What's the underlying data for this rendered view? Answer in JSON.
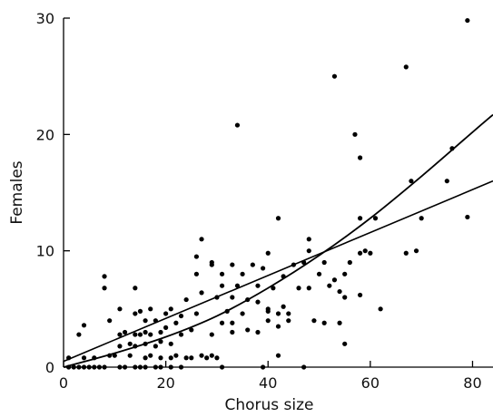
{
  "chart_data": {
    "type": "scatter",
    "title": "",
    "xlabel": "Chorus size",
    "ylabel": "Females",
    "xlim": [
      0,
      84
    ],
    "ylim": [
      0,
      30
    ],
    "xticks": [
      0,
      20,
      40,
      60,
      80
    ],
    "yticks": [
      0,
      10,
      20,
      30
    ],
    "xtick_labels": [
      "0",
      "20",
      "40",
      "60",
      "80"
    ],
    "ytick_labels": [
      "0",
      "10",
      "20",
      "30"
    ],
    "grid": false,
    "legend": "none",
    "points": [
      [
        1,
        0
      ],
      [
        2,
        0
      ],
      [
        3,
        0
      ],
      [
        4,
        0
      ],
      [
        5,
        0
      ],
      [
        6,
        0
      ],
      [
        7,
        0
      ],
      [
        8,
        0
      ],
      [
        11,
        0
      ],
      [
        12,
        0
      ],
      [
        14,
        0
      ],
      [
        15,
        0
      ],
      [
        16,
        0
      ],
      [
        18,
        0
      ],
      [
        19,
        0
      ],
      [
        21,
        0
      ],
      [
        23,
        0
      ],
      [
        31,
        0
      ],
      [
        39,
        0
      ],
      [
        47,
        0
      ],
      [
        1,
        0.8
      ],
      [
        4,
        0.8
      ],
      [
        6,
        0.8
      ],
      [
        9,
        1
      ],
      [
        10,
        1
      ],
      [
        13,
        1
      ],
      [
        16,
        0.8
      ],
      [
        17,
        1
      ],
      [
        19,
        0.8
      ],
      [
        21,
        0.8
      ],
      [
        22,
        1
      ],
      [
        24,
        0.8
      ],
      [
        25,
        0.8
      ],
      [
        27,
        1
      ],
      [
        28,
        0.8
      ],
      [
        29,
        1
      ],
      [
        30,
        0.8
      ],
      [
        11,
        1.8
      ],
      [
        13,
        2
      ],
      [
        14,
        1.8
      ],
      [
        16,
        2
      ],
      [
        18,
        1.8
      ],
      [
        19,
        2.2
      ],
      [
        21,
        2
      ],
      [
        23,
        2.8
      ],
      [
        29,
        2.8
      ],
      [
        33,
        3
      ],
      [
        40,
        4
      ],
      [
        42,
        3.5
      ],
      [
        44,
        4
      ],
      [
        3,
        2.8
      ],
      [
        4,
        3.6
      ],
      [
        11,
        2.8
      ],
      [
        12,
        3
      ],
      [
        14,
        2.8
      ],
      [
        15,
        2.8
      ],
      [
        16,
        3
      ],
      [
        17,
        2.8
      ],
      [
        19,
        3
      ],
      [
        20,
        3.4
      ],
      [
        25,
        3.2
      ],
      [
        31,
        3.8
      ],
      [
        33,
        3.8
      ],
      [
        36,
        3.2
      ],
      [
        38,
        3
      ],
      [
        9,
        4
      ],
      [
        14,
        4.6
      ],
      [
        16,
        4
      ],
      [
        18,
        4
      ],
      [
        20,
        4.6
      ],
      [
        22,
        3.8
      ],
      [
        23,
        4.4
      ],
      [
        26,
        4.6
      ],
      [
        32,
        4.8
      ],
      [
        35,
        4.6
      ],
      [
        40,
        4.8
      ],
      [
        42,
        4.6
      ],
      [
        44,
        4.6
      ],
      [
        49,
        4
      ],
      [
        51,
        3.8
      ],
      [
        54,
        3.8
      ],
      [
        11,
        5
      ],
      [
        15,
        4.8
      ],
      [
        17,
        5
      ],
      [
        21,
        5
      ],
      [
        24,
        5.8
      ],
      [
        27,
        6.4
      ],
      [
        30,
        6
      ],
      [
        33,
        6
      ],
      [
        36,
        5.8
      ],
      [
        38,
        5.6
      ],
      [
        40,
        5
      ],
      [
        43,
        5.2
      ],
      [
        48,
        6.8
      ],
      [
        52,
        7
      ],
      [
        55,
        6
      ],
      [
        58,
        6.2
      ],
      [
        8,
        6.8
      ],
      [
        8,
        7.8
      ],
      [
        14,
        6.8
      ],
      [
        26,
        8
      ],
      [
        29,
        8.8
      ],
      [
        31,
        7
      ],
      [
        34,
        7
      ],
      [
        38,
        7
      ],
      [
        41,
        6.8
      ],
      [
        46,
        6.8
      ],
      [
        50,
        8
      ],
      [
        54,
        6.5
      ],
      [
        26,
        9.5
      ],
      [
        27,
        11
      ],
      [
        29,
        9
      ],
      [
        31,
        8
      ],
      [
        33,
        8.8
      ],
      [
        35,
        8
      ],
      [
        37,
        8.8
      ],
      [
        39,
        8.5
      ],
      [
        40,
        9.8
      ],
      [
        43,
        7.8
      ],
      [
        45,
        8.8
      ],
      [
        47,
        9
      ],
      [
        48,
        10
      ],
      [
        48,
        11
      ],
      [
        51,
        9
      ],
      [
        53,
        7.5
      ],
      [
        55,
        8
      ],
      [
        56,
        9
      ],
      [
        58,
        9.8
      ],
      [
        59,
        10
      ],
      [
        60,
        9.8
      ],
      [
        62,
        5
      ],
      [
        58,
        12.8
      ],
      [
        61,
        12.8
      ],
      [
        67,
        9.8
      ],
      [
        69,
        10
      ],
      [
        70,
        12.8
      ],
      [
        42,
        12.8
      ],
      [
        42,
        1
      ],
      [
        55,
        2
      ],
      [
        53,
        25
      ],
      [
        57,
        20
      ],
      [
        58,
        18
      ],
      [
        34,
        20.8
      ],
      [
        67,
        25.8
      ],
      [
        68,
        16
      ],
      [
        75,
        16
      ],
      [
        76,
        18.8
      ],
      [
        79,
        29.8
      ],
      [
        79,
        12.9
      ]
    ],
    "fits": [
      {
        "kind": "linear",
        "x": [
          0,
          84
        ],
        "y": [
          0.5,
          16
        ]
      },
      {
        "kind": "curve",
        "x": [
          0,
          10,
          20,
          30,
          40,
          50,
          60,
          70,
          80,
          84
        ],
        "y": [
          0,
          1.2,
          2.6,
          4.4,
          6.8,
          9.6,
          12.8,
          16.4,
          20.2,
          21.7
        ]
      }
    ]
  }
}
